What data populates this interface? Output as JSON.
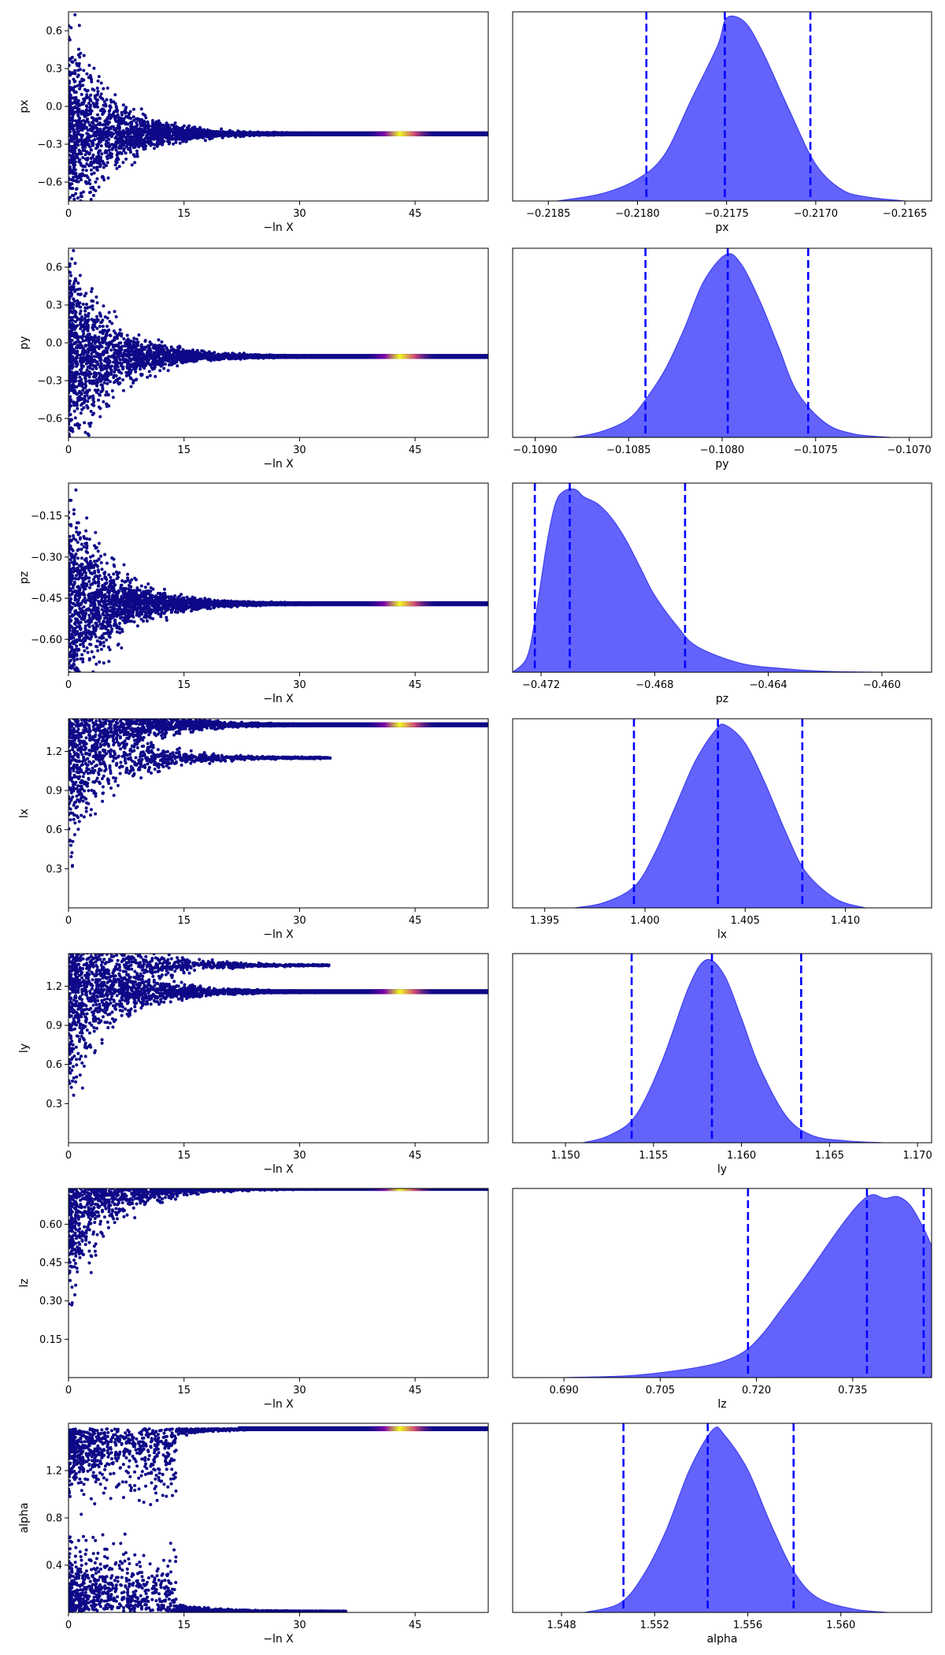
{
  "figure": {
    "colors": {
      "trace_low": "#0d0887",
      "trace_mid": "#7e03a8",
      "trace_high": "#f0f921",
      "density_fill": "#6363fc",
      "density_edge": "#4040ee",
      "quantile_line": "#0000ff",
      "axes": "#000000",
      "background": "#ffffff"
    }
  },
  "chart_data": [
    {
      "type": "scatter",
      "name": "px-trace",
      "xlabel": "−ln X",
      "ylabel": "px",
      "xlim": [
        0,
        54.5
      ],
      "ylim": [
        -0.75,
        0.75
      ],
      "xticks": [
        0,
        15,
        30,
        45
      ],
      "xtick_labels": [
        "0",
        "15",
        "30",
        "45"
      ],
      "yticks": [
        0.6,
        0.3,
        0.0,
        -0.3,
        -0.6
      ],
      "ytick_labels": [
        "0.6",
        "0.3",
        "0.0",
        "−0.3",
        "−0.6"
      ],
      "converged_value": -0.2175,
      "bright_region": [
        38,
        48
      ]
    },
    {
      "type": "area",
      "name": "px-marginal",
      "xlabel": "px",
      "xlim": [
        -0.2187,
        -0.21635
      ],
      "xticks": [
        -0.2185,
        -0.218,
        -0.2175,
        -0.217,
        -0.2165
      ],
      "xtick_labels": [
        "−0.2185",
        "−0.2180",
        "−0.2175",
        "−0.2170",
        "−0.2165"
      ],
      "x": [
        -0.21845,
        -0.2182,
        -0.218,
        -0.21785,
        -0.2177,
        -0.21755,
        -0.2175,
        -0.2174,
        -0.2173,
        -0.21715,
        -0.217,
        -0.21685,
        -0.2167,
        -0.2165
      ],
      "y": [
        0,
        0.04,
        0.12,
        0.25,
        0.55,
        0.85,
        1.0,
        0.98,
        0.82,
        0.5,
        0.2,
        0.06,
        0.02,
        0
      ],
      "quantiles": [
        -0.21795,
        -0.21751,
        -0.21703
      ]
    },
    {
      "type": "scatter",
      "name": "py-trace",
      "xlabel": "−ln X",
      "ylabel": "py",
      "xlim": [
        0,
        54.5
      ],
      "ylim": [
        -0.75,
        0.75
      ],
      "xticks": [
        0,
        15,
        30,
        45
      ],
      "xtick_labels": [
        "0",
        "15",
        "30",
        "45"
      ],
      "yticks": [
        0.6,
        0.3,
        0.0,
        -0.3,
        -0.6
      ],
      "ytick_labels": [
        "0.6",
        "0.3",
        "0.0",
        "−0.3",
        "−0.6"
      ],
      "converged_value": -0.108,
      "bright_region": [
        38,
        48
      ]
    },
    {
      "type": "area",
      "name": "py-marginal",
      "xlabel": "py",
      "xlim": [
        -0.10912,
        -0.10688
      ],
      "xticks": [
        -0.109,
        -0.1085,
        -0.108,
        -0.1075,
        -0.107
      ],
      "xtick_labels": [
        "−0.1090",
        "−0.1085",
        "−0.1080",
        "−0.1075",
        "−0.1070"
      ],
      "x": [
        -0.1088,
        -0.10865,
        -0.1085,
        -0.1084,
        -0.1083,
        -0.1082,
        -0.1081,
        -0.10798,
        -0.1079,
        -0.1078,
        -0.1077,
        -0.1076,
        -0.10745,
        -0.1073,
        -0.1071
      ],
      "y": [
        0,
        0.03,
        0.1,
        0.22,
        0.38,
        0.6,
        0.85,
        1.0,
        0.95,
        0.75,
        0.5,
        0.25,
        0.08,
        0.02,
        0
      ],
      "quantiles": [
        -0.10841,
        -0.10797,
        -0.10754
      ]
    },
    {
      "type": "scatter",
      "name": "pz-trace",
      "xlabel": "−ln X",
      "ylabel": "pz",
      "xlim": [
        0,
        54.5
      ],
      "ylim": [
        -0.72,
        -0.03
      ],
      "xticks": [
        0,
        15,
        30,
        45
      ],
      "xtick_labels": [
        "0",
        "15",
        "30",
        "45"
      ],
      "yticks": [
        -0.15,
        -0.3,
        -0.45,
        -0.6
      ],
      "ytick_labels": [
        "−0.15",
        "−0.30",
        "−0.45",
        "−0.60"
      ],
      "converged_value": -0.47,
      "bright_region": [
        38,
        48
      ]
    },
    {
      "type": "area",
      "name": "pz-marginal",
      "xlabel": "pz",
      "xlim": [
        -0.473,
        -0.45825
      ],
      "xticks": [
        -0.472,
        -0.468,
        -0.464,
        -0.46
      ],
      "xtick_labels": [
        "−0.472",
        "−0.468",
        "−0.464",
        "−0.460"
      ],
      "x": [
        -0.473,
        -0.4725,
        -0.4722,
        -0.4718,
        -0.4715,
        -0.4712,
        -0.4708,
        -0.4705,
        -0.47,
        -0.4695,
        -0.469,
        -0.4685,
        -0.468,
        -0.4672,
        -0.4665,
        -0.465,
        -0.4635,
        -0.462,
        -0.46,
        -0.4583
      ],
      "y": [
        0,
        0.08,
        0.3,
        0.7,
        0.92,
        0.99,
        1.0,
        0.96,
        0.92,
        0.84,
        0.72,
        0.57,
        0.42,
        0.25,
        0.14,
        0.05,
        0.02,
        0.005,
        0,
        0
      ],
      "quantiles": [
        -0.47222,
        -0.47099,
        -0.46693
      ]
    },
    {
      "type": "scatter",
      "name": "lx-trace",
      "xlabel": "−ln X",
      "ylabel": "lx",
      "xlim": [
        0,
        54.5
      ],
      "ylim": [
        0,
        1.45
      ],
      "xticks": [
        0,
        15,
        30,
        45
      ],
      "xtick_labels": [
        "0",
        "15",
        "30",
        "45"
      ],
      "yticks": [
        1.2,
        0.9,
        0.6,
        0.3
      ],
      "ytick_labels": [
        "1.2",
        "0.9",
        "0.6",
        "0.3"
      ],
      "converged_value": 1.4037,
      "secondary_mode": 1.15,
      "bright_region": [
        38,
        48
      ]
    },
    {
      "type": "area",
      "name": "lx-marginal",
      "xlabel": "lx",
      "xlim": [
        1.3934,
        1.4143
      ],
      "xticks": [
        1.395,
        1.4,
        1.405,
        1.41
      ],
      "xtick_labels": [
        "1.395",
        "1.400",
        "1.405",
        "1.410"
      ],
      "x": [
        1.3965,
        1.398,
        1.3995,
        1.4005,
        1.4015,
        1.4025,
        1.4035,
        1.404,
        1.405,
        1.406,
        1.407,
        1.408,
        1.4095,
        1.411
      ],
      "y": [
        0,
        0.03,
        0.12,
        0.3,
        0.55,
        0.8,
        0.97,
        1.0,
        0.9,
        0.68,
        0.42,
        0.2,
        0.05,
        0
      ],
      "quantiles": [
        1.39945,
        1.40364,
        1.40785
      ]
    },
    {
      "type": "scatter",
      "name": "ly-trace",
      "xlabel": "−ln X",
      "ylabel": "ly",
      "xlim": [
        0,
        54.5
      ],
      "ylim": [
        0,
        1.45
      ],
      "xticks": [
        0,
        15,
        30,
        45
      ],
      "xtick_labels": [
        "0",
        "15",
        "30",
        "45"
      ],
      "yticks": [
        1.2,
        0.9,
        0.6,
        0.3
      ],
      "ytick_labels": [
        "1.2",
        "0.9",
        "0.6",
        "0.3"
      ],
      "converged_value": 1.158,
      "secondary_mode": 1.36,
      "bright_region": [
        38,
        48
      ]
    },
    {
      "type": "area",
      "name": "ly-marginal",
      "xlabel": "ly",
      "xlim": [
        1.147,
        1.1708
      ],
      "xticks": [
        1.15,
        1.155,
        1.16,
        1.165,
        1.17
      ],
      "xtick_labels": [
        "1.150",
        "1.155",
        "1.160",
        "1.165",
        "1.170"
      ],
      "x": [
        1.151,
        1.1525,
        1.154,
        1.1555,
        1.157,
        1.158,
        1.159,
        1.16,
        1.161,
        1.1625,
        1.164,
        1.166,
        1.168
      ],
      "y": [
        0,
        0.04,
        0.15,
        0.45,
        0.85,
        1.0,
        0.92,
        0.68,
        0.42,
        0.15,
        0.04,
        0.01,
        0
      ],
      "quantiles": [
        1.15376,
        1.15832,
        1.16339
      ]
    },
    {
      "type": "scatter",
      "name": "lz-trace",
      "xlabel": "−ln X",
      "ylabel": "lz",
      "xlim": [
        0,
        54.5
      ],
      "ylim": [
        0,
        0.74
      ],
      "xticks": [
        0,
        15,
        30,
        45
      ],
      "xtick_labels": [
        "0",
        "15",
        "30",
        "45"
      ],
      "yticks": [
        0.6,
        0.45,
        0.3,
        0.15
      ],
      "ytick_labels": [
        "0.60",
        "0.45",
        "0.30",
        "0.15"
      ],
      "converged_value": 0.74,
      "bright_region": [
        38,
        48
      ]
    },
    {
      "type": "area",
      "name": "lz-marginal",
      "xlabel": "lz",
      "xlim": [
        0.682,
        0.7473
      ],
      "xticks": [
        0.69,
        0.705,
        0.72,
        0.735
      ],
      "xtick_labels": [
        "0.690",
        "0.705",
        "0.720",
        "0.735"
      ],
      "x": [
        0.69,
        0.7,
        0.708,
        0.714,
        0.718,
        0.721,
        0.724,
        0.727,
        0.73,
        0.733,
        0.736,
        0.738,
        0.74,
        0.742,
        0.744,
        0.746,
        0.7473
      ],
      "y": [
        0,
        0.01,
        0.04,
        0.08,
        0.14,
        0.24,
        0.38,
        0.52,
        0.67,
        0.82,
        0.95,
        1.0,
        0.98,
        0.99,
        0.94,
        0.82,
        0.72
      ],
      "quantiles": [
        0.71868,
        0.73722,
        0.74606
      ]
    },
    {
      "type": "scatter",
      "name": "alpha-trace",
      "xlabel": "−ln X",
      "ylabel": "alpha",
      "xlim": [
        0,
        54.5
      ],
      "ylim": [
        0,
        1.6
      ],
      "xticks": [
        0,
        15,
        30,
        45
      ],
      "xtick_labels": [
        "0",
        "15",
        "30",
        "45"
      ],
      "yticks": [
        1.2,
        0.8,
        0.4
      ],
      "ytick_labels": [
        "1.2",
        "0.8",
        "0.4"
      ],
      "converged_value": 1.554,
      "bright_region": [
        38,
        48
      ]
    },
    {
      "type": "area",
      "name": "alpha-marginal",
      "xlabel": "alpha",
      "xlim": [
        1.5459,
        1.5639
      ],
      "xticks": [
        1.548,
        1.552,
        1.556,
        1.56
      ],
      "xtick_labels": [
        "1.548",
        "1.552",
        "1.556",
        "1.560"
      ],
      "x": [
        1.549,
        1.5505,
        1.5515,
        1.5525,
        1.5535,
        1.5545,
        1.555,
        1.556,
        1.557,
        1.558,
        1.559,
        1.5605,
        1.562
      ],
      "y": [
        0,
        0.05,
        0.2,
        0.45,
        0.78,
        1.0,
        0.97,
        0.78,
        0.48,
        0.22,
        0.08,
        0.02,
        0
      ],
      "quantiles": [
        1.55066,
        1.55428,
        1.55797
      ]
    }
  ]
}
